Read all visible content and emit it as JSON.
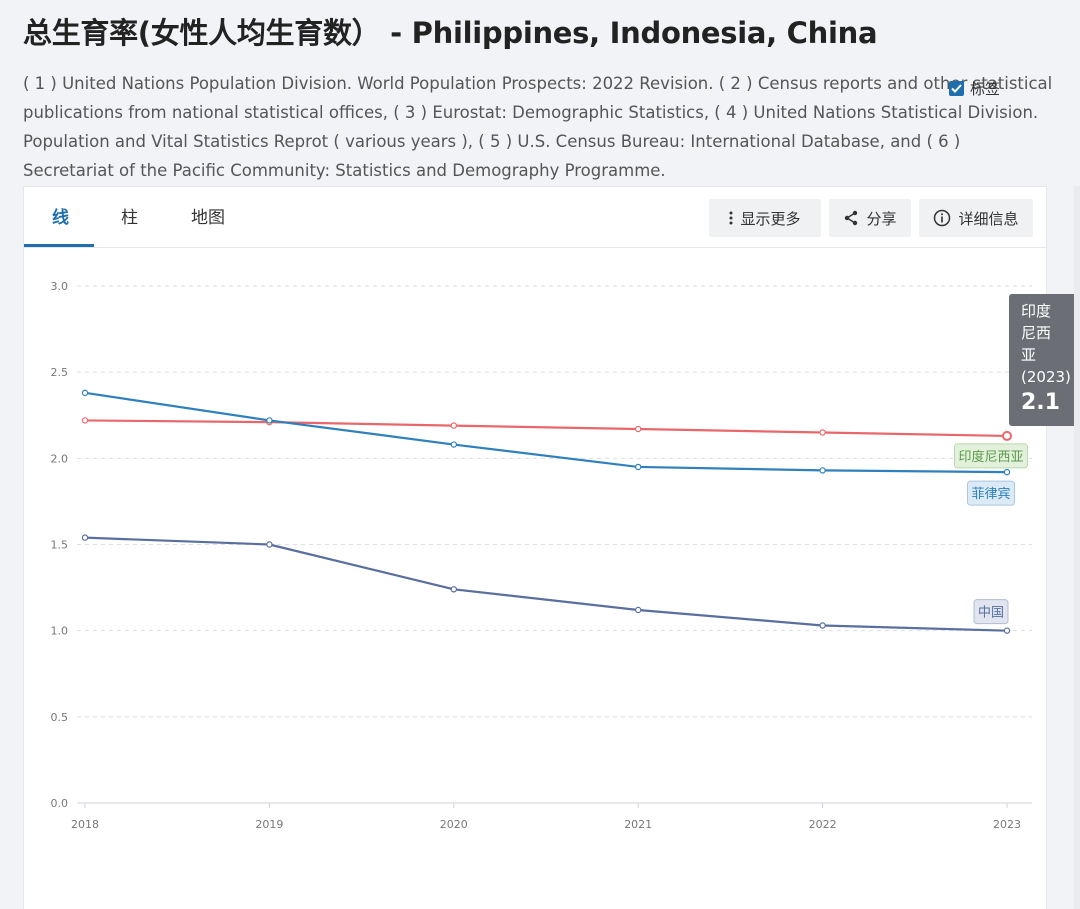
{
  "title": "总生育率(女性人均生育数） - Philippines, Indonesia, China",
  "source_note": "( 1 ) United Nations Population Division. World Population Prospects: 2022 Revision. ( 2 ) Census reports and other statistical publications from national statistical offices, ( 3 ) Eurostat: Demographic Statistics, ( 4 ) United Nations Statistical Division. Population and Vital Statistics Reprot ( various years ), ( 5 ) U.S. Census Bureau: International Database, and ( 6 ) Secretariat of the Pacific Community: Statistics and Demography Programme.",
  "tabs": [
    {
      "label": "线",
      "active": true
    },
    {
      "label": "柱",
      "active": false
    },
    {
      "label": "地图",
      "active": false
    }
  ],
  "toolbar": {
    "more_label": "显示更多",
    "share_label": "分享",
    "details_label": "详细信息"
  },
  "labels_toggle": {
    "label": "标签",
    "checked": true
  },
  "tooltip": {
    "series": "印度尼西亚",
    "year": "(2023)",
    "value": "2.1"
  },
  "chart_data": {
    "type": "line",
    "x": [
      2018,
      2019,
      2020,
      2021,
      2022,
      2023
    ],
    "ylim": [
      0,
      3
    ],
    "yticks": [
      "0.0",
      "0.5",
      "1.0",
      "1.5",
      "2.0",
      "2.5",
      "3.0"
    ],
    "xticks": [
      "2018",
      "2019",
      "2020",
      "2021",
      "2022",
      "2023"
    ],
    "grid": true,
    "series": [
      {
        "name": "印度尼西亚",
        "color": "#e8676b",
        "label_color": "#5a9a4a",
        "label_bg": "#e3f1dc",
        "label_border": "#b9dba9",
        "values": [
          2.22,
          2.21,
          2.19,
          2.17,
          2.15,
          2.13
        ]
      },
      {
        "name": "菲律宾",
        "color": "#2f80bd",
        "label_color": "#2f80bd",
        "label_bg": "#dceaf6",
        "label_border": "#a9c8e4",
        "values": [
          2.38,
          2.22,
          2.08,
          1.95,
          1.93,
          1.92
        ]
      },
      {
        "name": "中国",
        "color": "#596f9e",
        "label_color": "#596f9e",
        "label_bg": "#e1e5ef",
        "label_border": "#b3bcd2",
        "values": [
          1.54,
          1.5,
          1.24,
          1.12,
          1.03,
          1.0
        ]
      }
    ]
  }
}
